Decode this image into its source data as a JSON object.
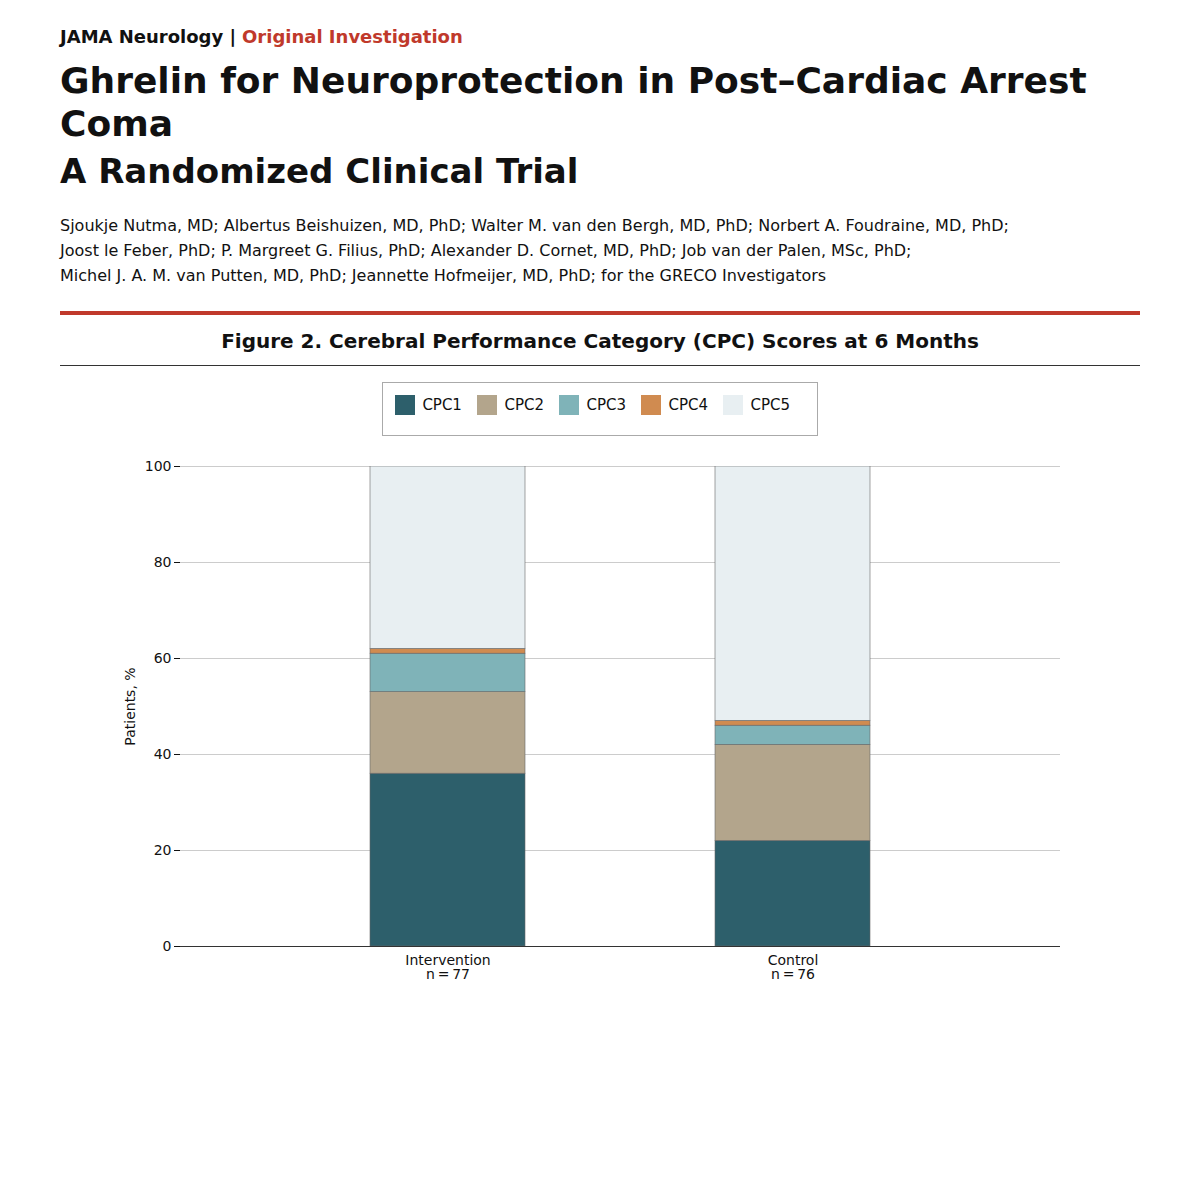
{
  "chart_data": {
    "type": "bar",
    "stacked": true,
    "title": "Ghrelin for Neuroprotection in Post–Cardiac Arrest Coma",
    "subtitle": "A Randomized Clinical Trial",
    "annotations": [
      "JAMA Neurology |",
      "Original Investigation",
      "Sjoukje Nutma, MD; Albertus Beishuizen, MD, PhD; Walter M. van den Bergh, MD, PhD; Norbert A. Foudraine, MD, PhD;",
      "Joost le Feber, PhD; P. Margreet G. Filius, PhD; Alexander D. Cornet, MD, PhD; Job van der Palen, MSc, PhD;",
      "Michel J. A. M. van Putten, MD, PhD; Jeannette Hofmeijer, MD, PhD; for the GRECO Investigators",
      "Figure 2. Cerebral Performance Category (CPC) Scores at 6 Months"
    ],
    "ylabel": "Patients, %",
    "categories": [
      "Intervention\nn = 77",
      "Control\nn = 76"
    ],
    "series": [
      {
        "name": "CPC1",
        "color": "#2d5f6b",
        "values": [
          36,
          22
        ]
      },
      {
        "name": "CPC2",
        "color": "#b3a58c",
        "values": [
          17,
          20
        ]
      },
      {
        "name": "CPC3",
        "color": "#7fb3b8",
        "values": [
          8,
          4
        ]
      },
      {
        "name": "CPC4",
        "color": "#d08b50",
        "values": [
          1,
          1
        ]
      },
      {
        "name": "CPC5",
        "color": "#e8eff2",
        "values": [
          38,
          53
        ]
      }
    ],
    "ylim": [
      0,
      100
    ],
    "yticks": [
      0,
      20,
      40,
      60,
      80,
      100
    ],
    "grid": true,
    "legend": "top"
  }
}
